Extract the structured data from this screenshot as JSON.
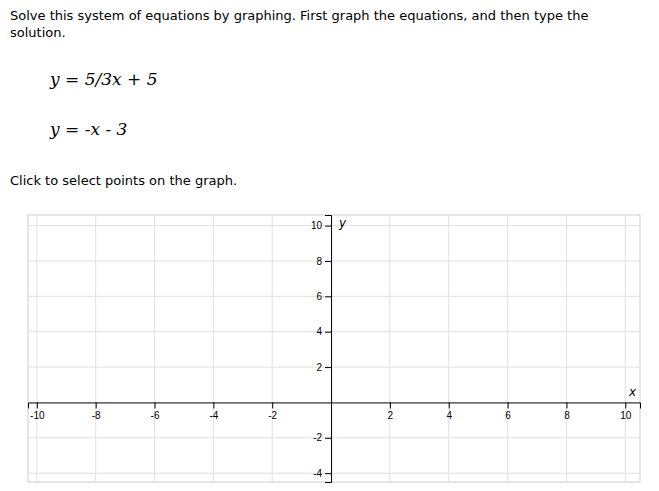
{
  "chart_data": {
    "type": "plane",
    "title": "Solve this system of equations by graphing. First graph the equations, and then type the\nsolution.",
    "annotations": [
      "y = 5/3x + 5",
      "y = -x - 3",
      "Click to select points on the graph."
    ],
    "x_label": "x",
    "y_label": "y",
    "xlim": [
      -10.3,
      10.5
    ],
    "ylim": [
      -4.5,
      10.6
    ],
    "xticks": [
      -10,
      -8,
      -6,
      -4,
      -2,
      2,
      4,
      6,
      8,
      10
    ],
    "yticks": [
      -4,
      -2,
      2,
      4,
      6,
      8,
      10
    ],
    "grid": true
  }
}
